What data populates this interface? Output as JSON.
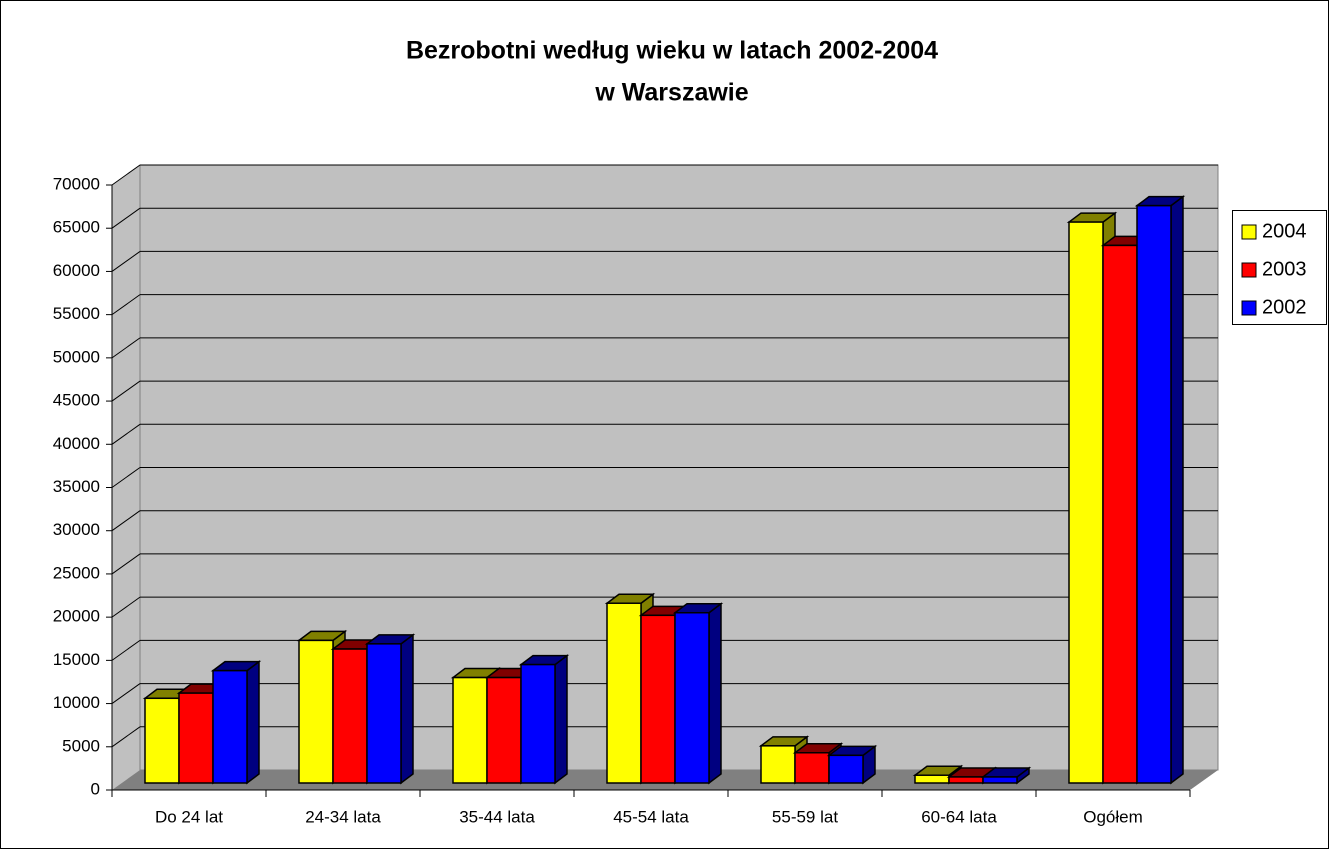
{
  "chart_data": {
    "type": "bar3d",
    "title": [
      "Bezrobotni według wieku w latach 2002-2004",
      "w  Warszawie"
    ],
    "categories": [
      "Do 24 lat",
      "24-34 lata",
      "35-44 lata",
      "45-54 lata",
      "55-59 lat",
      "60-64 lata",
      "Ogółem"
    ],
    "series": [
      {
        "name": "2004",
        "color": "#ffff00",
        "side": "#808000",
        "values": [
          9800,
          16500,
          12200,
          20800,
          4300,
          900,
          64900
        ]
      },
      {
        "name": "2003",
        "color": "#ff0000",
        "side": "#800000",
        "values": [
          10400,
          15500,
          12200,
          19400,
          3500,
          700,
          62200
        ]
      },
      {
        "name": "2002",
        "color": "#0000ff",
        "side": "#000080",
        "values": [
          13000,
          16100,
          13700,
          19700,
          3200,
          700,
          66800
        ]
      }
    ],
    "ylim": [
      0,
      70000
    ],
    "yticks": [
      0,
      5000,
      10000,
      15000,
      20000,
      25000,
      30000,
      35000,
      40000,
      45000,
      50000,
      55000,
      60000,
      65000,
      70000
    ],
    "grid": true
  }
}
